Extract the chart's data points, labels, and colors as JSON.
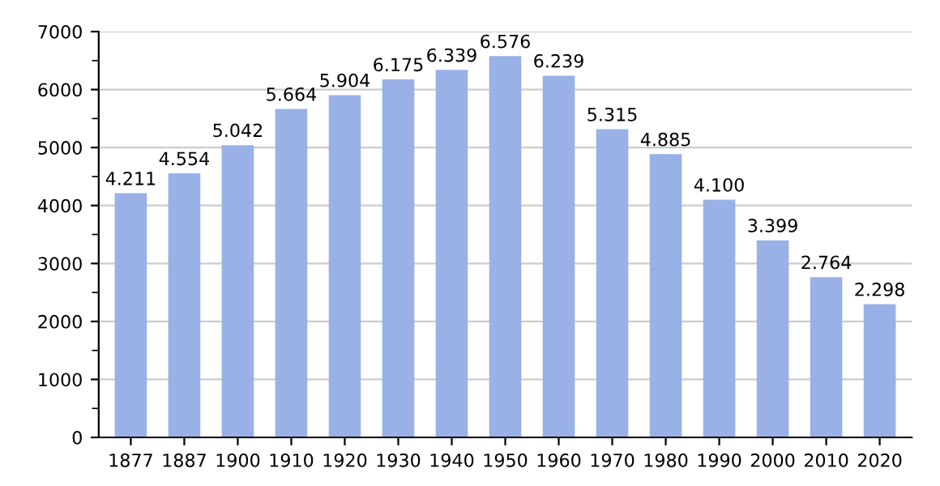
{
  "chart_data": {
    "type": "bar",
    "categories": [
      "1877",
      "1887",
      "1900",
      "1910",
      "1920",
      "1930",
      "1940",
      "1950",
      "1960",
      "1970",
      "1980",
      "1990",
      "2000",
      "2010",
      "2020"
    ],
    "values": [
      4211,
      4554,
      5042,
      5664,
      5904,
      6175,
      6339,
      6576,
      6239,
      5315,
      4885,
      4100,
      3399,
      2764,
      2298
    ],
    "value_labels": [
      "4.211",
      "4.554",
      "5.042",
      "5.664",
      "5.904",
      "6.175",
      "6.339",
      "6.576",
      "6.239",
      "5.315",
      "4.885",
      "4.100",
      "3.399",
      "2.764",
      "2.298"
    ],
    "color": "#99b1e6",
    "ylim": [
      0,
      7000
    ],
    "yticks": [
      0,
      {
        "value": 500,
        "label": null
      },
      1000,
      {
        "value": 1500,
        "label": null
      },
      2000,
      {
        "value": 2500,
        "label": null
      },
      3000,
      {
        "value": 3500,
        "label": null
      },
      4000,
      {
        "value": 4500,
        "label": null
      },
      5000,
      {
        "value": 5500,
        "label": null
      },
      6000,
      {
        "value": 6500,
        "label": null
      },
      7000
    ],
    "grid": "y",
    "legend": false
  }
}
